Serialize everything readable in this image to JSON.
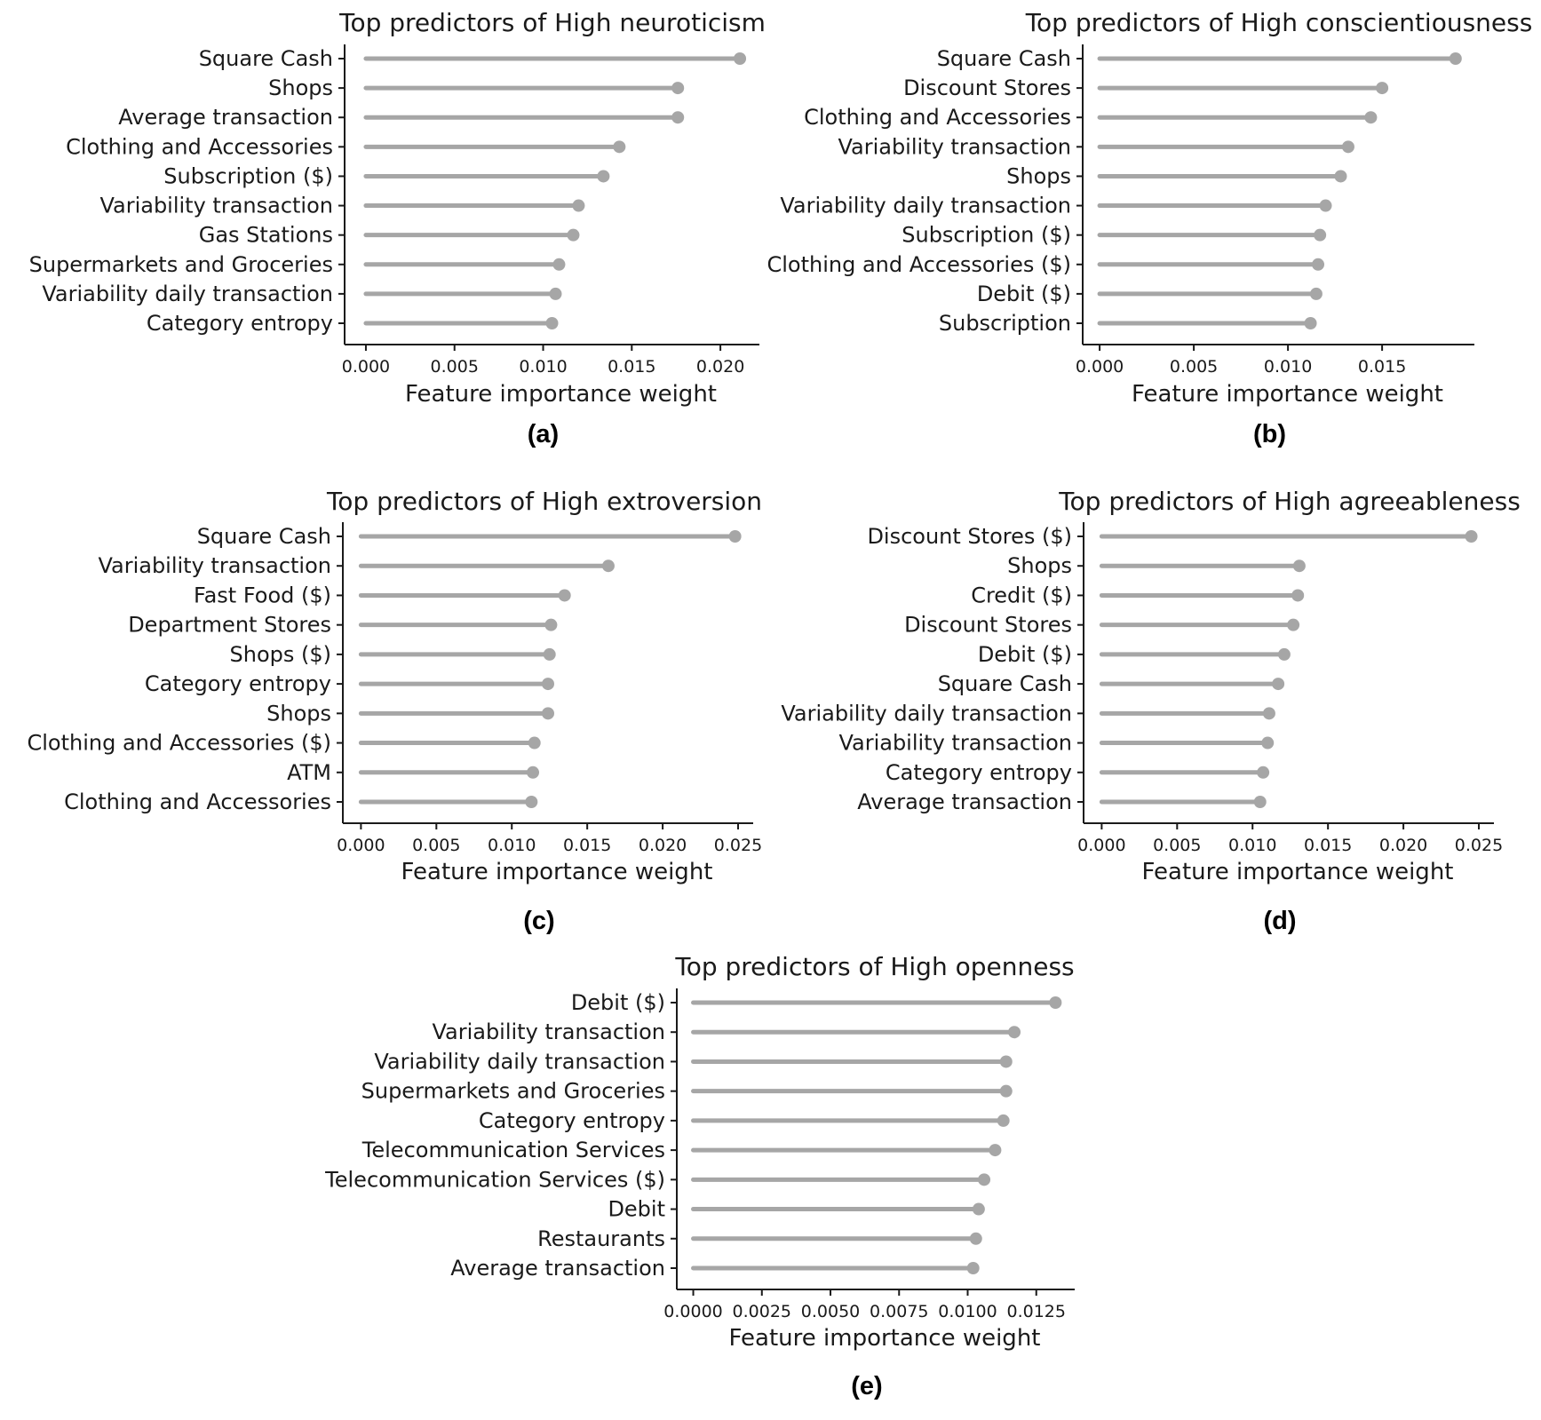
{
  "colors": {
    "stem": "#a6a6a6",
    "dot": "#a6a6a6",
    "text": "#1a1a1a"
  },
  "chart_data": [
    {
      "type": "lollipop",
      "panel_label": "(a)",
      "title": "Top predictors of High neuroticism",
      "xlabel": "Feature importance weight",
      "ylabel": "",
      "xlim": [
        -0.0012,
        0.0222
      ],
      "xticks": [
        0.0,
        0.005,
        0.01,
        0.015,
        0.02
      ],
      "xtick_labels": [
        "0.000",
        "0.005",
        "0.010",
        "0.015",
        "0.020"
      ],
      "grid": false,
      "categories": [
        "Square Cash",
        "Shops",
        "Average transaction",
        "Clothing and Accessories",
        "Subscription ($)",
        "Variability transaction",
        "Gas Stations",
        "Supermarkets and Groceries",
        "Variability daily transaction",
        "Category entropy"
      ],
      "values": [
        0.0211,
        0.0176,
        0.0176,
        0.0143,
        0.0134,
        0.012,
        0.0117,
        0.0109,
        0.0107,
        0.0105
      ]
    },
    {
      "type": "lollipop",
      "panel_label": "(b)",
      "title": "Top predictors of High conscientiousness",
      "xlabel": "Feature importance weight",
      "ylabel": "",
      "xlim": [
        -0.0009,
        0.0199
      ],
      "xticks": [
        0.0,
        0.005,
        0.01,
        0.015
      ],
      "xtick_labels": [
        "0.000",
        "0.005",
        "0.010",
        "0.015"
      ],
      "grid": false,
      "categories": [
        "Square Cash",
        "Discount Stores",
        "Clothing and Accessories",
        "Variability transaction",
        "Shops",
        "Variability daily transaction",
        "Subscription ($)",
        "Clothing and Accessories ($)",
        "Debit ($)",
        "Subscription"
      ],
      "values": [
        0.0189,
        0.015,
        0.0144,
        0.0132,
        0.0128,
        0.012,
        0.0117,
        0.0116,
        0.0115,
        0.0112
      ]
    },
    {
      "type": "lollipop",
      "panel_label": "(c)",
      "title": "Top predictors of High extroversion",
      "xlabel": "Feature importance weight",
      "ylabel": "",
      "xlim": [
        -0.0012,
        0.026
      ],
      "xticks": [
        0.0,
        0.005,
        0.01,
        0.015,
        0.02,
        0.025
      ],
      "xtick_labels": [
        "0.000",
        "0.005",
        "0.010",
        "0.015",
        "0.020",
        "0.025"
      ],
      "grid": false,
      "categories": [
        "Square Cash",
        "Variability transaction",
        "Fast Food ($)",
        "Department Stores",
        "Shops ($)",
        "Category entropy",
        "Shops",
        "Clothing and Accessories ($)",
        "ATM",
        "Clothing and Accessories"
      ],
      "values": [
        0.0248,
        0.0164,
        0.0135,
        0.0126,
        0.0125,
        0.0124,
        0.0124,
        0.0115,
        0.0114,
        0.0113
      ]
    },
    {
      "type": "lollipop",
      "panel_label": "(d)",
      "title": "Top predictors of High agreeableness",
      "xlabel": "Feature importance weight",
      "ylabel": "",
      "xlim": [
        -0.0012,
        0.026
      ],
      "xticks": [
        0.0,
        0.005,
        0.01,
        0.015,
        0.02,
        0.025
      ],
      "xtick_labels": [
        "0.000",
        "0.005",
        "0.010",
        "0.015",
        "0.020",
        "0.025"
      ],
      "grid": false,
      "categories": [
        "Discount Stores ($)",
        "Shops",
        "Credit ($)",
        "Discount Stores",
        "Debit ($)",
        "Square Cash",
        "Variability daily transaction",
        "Variability transaction",
        "Category entropy",
        "Average transaction"
      ],
      "values": [
        0.0245,
        0.0131,
        0.013,
        0.0127,
        0.0121,
        0.0117,
        0.0111,
        0.011,
        0.0107,
        0.0105
      ]
    },
    {
      "type": "lollipop",
      "panel_label": "(e)",
      "title": "Top predictors of High openness",
      "xlabel": "Feature importance weight",
      "ylabel": "",
      "xlim": [
        -0.0006,
        0.0139
      ],
      "xticks": [
        0.0,
        0.0025,
        0.005,
        0.0075,
        0.01,
        0.0125
      ],
      "xtick_labels": [
        "0.0000",
        "0.0025",
        "0.0050",
        "0.0075",
        "0.0100",
        "0.0125"
      ],
      "grid": false,
      "categories": [
        "Debit ($)",
        "Variability transaction",
        "Variability daily transaction",
        "Supermarkets and Groceries",
        "Category entropy",
        "Telecommunication Services",
        "Telecommunication Services ($)",
        "Debit",
        "Restaurants",
        "Average transaction"
      ],
      "values": [
        0.0132,
        0.0117,
        0.0114,
        0.0114,
        0.0113,
        0.011,
        0.0106,
        0.0104,
        0.0103,
        0.0102
      ]
    }
  ]
}
